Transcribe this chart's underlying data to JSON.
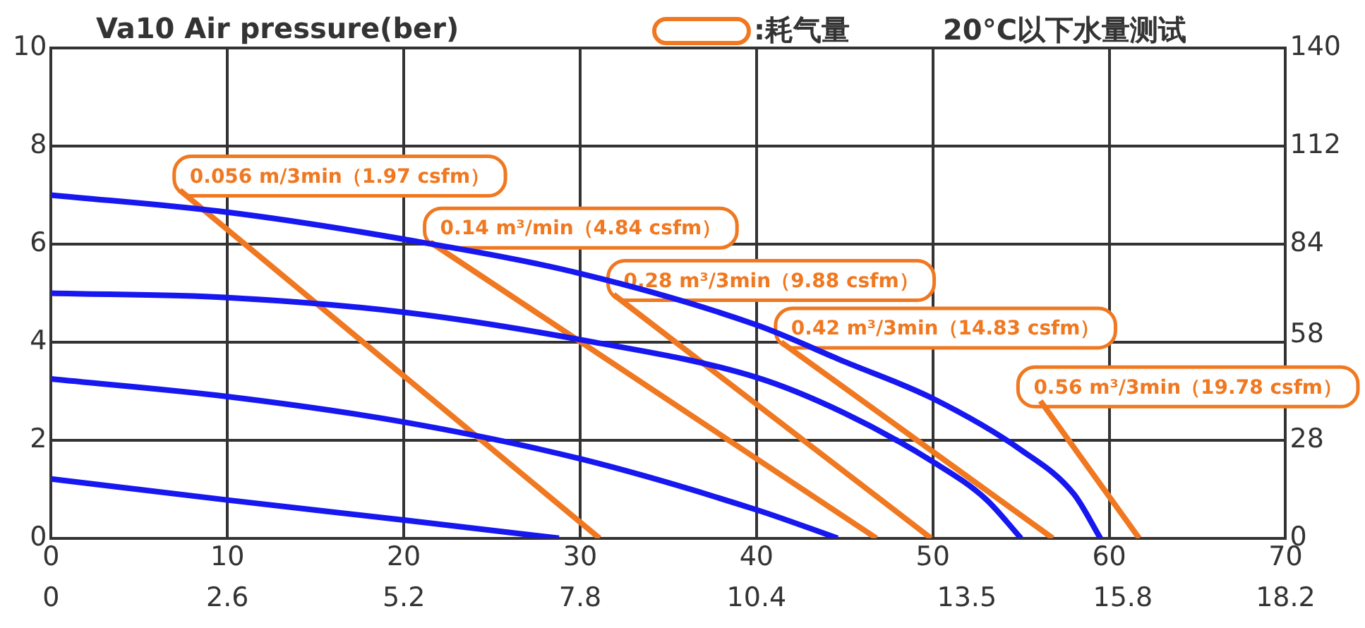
{
  "chart_data": {
    "type": "line",
    "title": "Va10 Air pressure(ber)",
    "annotations": [
      ":耗气量",
      "20°C以下水量测试"
    ],
    "xlim": [
      0,
      70
    ],
    "xticks": [
      0,
      10,
      20,
      30,
      40,
      50,
      60,
      70
    ],
    "x2lim": [
      0,
      18.2
    ],
    "x2ticks": [
      0,
      2.6,
      5.2,
      7.8,
      10.4,
      13.5,
      15.8,
      18.2
    ],
    "ylim": [
      0,
      10
    ],
    "yticks": [
      0,
      2,
      4,
      6,
      8,
      10
    ],
    "y2lim": [
      0,
      140
    ],
    "y2ticks": [
      0,
      28,
      58,
      84,
      112,
      140
    ],
    "grid": true,
    "marker": "none",
    "series": [
      {
        "color": "#1717f0",
        "x": [
          0,
          10,
          20,
          30,
          40,
          45,
          50,
          55,
          58,
          59.5
        ],
        "values": [
          7,
          6.65,
          6.1,
          5.4,
          4.35,
          3.6,
          2.85,
          1.8,
          0.9,
          0
        ]
      },
      {
        "color": "#1717f0",
        "x": [
          0,
          10,
          20,
          30,
          40,
          45,
          50,
          53,
          55
        ],
        "values": [
          5,
          4.91,
          4.61,
          4.05,
          3.28,
          2.55,
          1.56,
          0.8,
          0
        ]
      },
      {
        "color": "#1717f0",
        "x": [
          0,
          10,
          20,
          30,
          40,
          44.6
        ],
        "values": [
          3.25,
          2.89,
          2.37,
          1.62,
          0.58,
          0
        ]
      },
      {
        "color": "#1717f0",
        "x": [
          0,
          10,
          20,
          28.8
        ],
        "values": [
          1.21,
          0.78,
          0.37,
          0
        ]
      },
      {
        "name": "0.056 m/3min（1.97 csfm）",
        "color": "#f07820",
        "x": [
          7.3,
          31.1
        ],
        "values": [
          7.1,
          0
        ]
      },
      {
        "name": "0.14 m³/min（4.84 csfm）",
        "color": "#f07820",
        "x": [
          21.5,
          46.8
        ],
        "values": [
          6.04,
          0
        ]
      },
      {
        "name": "0.28 m³/3min（9.88 csfm）",
        "color": "#f07820",
        "x": [
          31.9,
          49.9
        ],
        "values": [
          4.97,
          0
        ]
      },
      {
        "name": "0.42 m³/3min（14.83 csfm）",
        "color": "#f07820",
        "x": [
          41.4,
          56.8
        ],
        "values": [
          4,
          0
        ]
      },
      {
        "name": "0.56 m³/3min（19.78 csfm）",
        "color": "#f07820",
        "x": [
          56.1,
          61.7
        ],
        "values": [
          2.8,
          0
        ]
      }
    ]
  }
}
